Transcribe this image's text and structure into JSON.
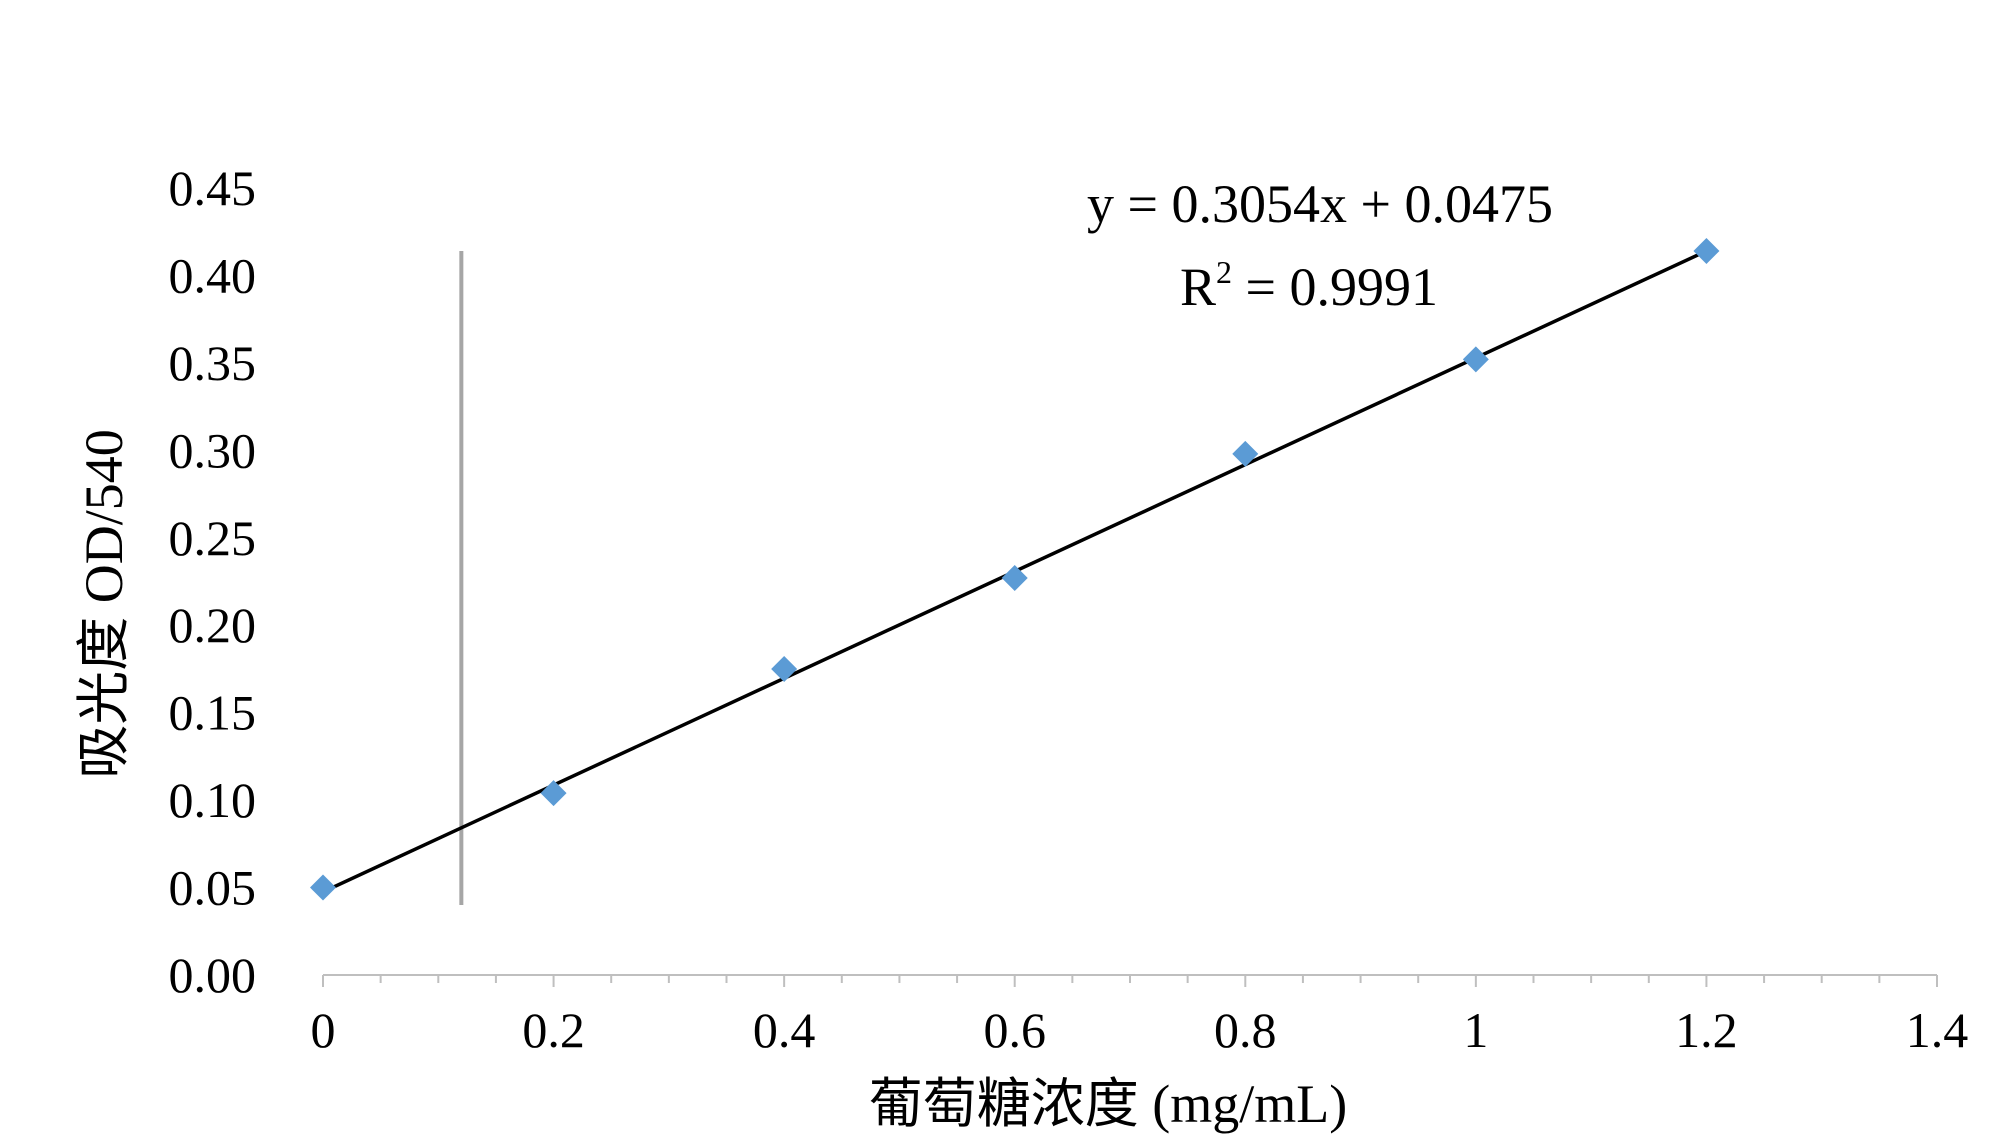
{
  "chart_data": {
    "type": "scatter",
    "xlabel": "葡萄糖浓度 (mg/mL)",
    "ylabel": "吸光度 OD/540",
    "xlim": [
      0,
      1.4
    ],
    "ylim": [
      0,
      0.45
    ],
    "x_ticks": [
      "0",
      "0.2",
      "0.4",
      "0.6",
      "0.8",
      "1",
      "1.2",
      "1.4"
    ],
    "y_ticks": [
      "0.00",
      "0.05",
      "0.10",
      "0.15",
      "0.20",
      "0.25",
      "0.30",
      "0.35",
      "0.40",
      "0.45"
    ],
    "grid": false,
    "series": [
      {
        "x": [
          0,
          0.2,
          0.4,
          0.6,
          0.8,
          1.0,
          1.2
        ],
        "y": [
          0.05,
          0.104,
          0.175,
          0.227,
          0.298,
          0.352,
          0.414
        ],
        "marker": "diamond",
        "color": "#5b9bd5"
      }
    ],
    "trendline": {
      "type": "linear",
      "slope": 0.3054,
      "intercept": 0.0475,
      "color": "#000000"
    },
    "annotations": {
      "equation": "y = 0.3054x + 0.0475",
      "r_squared_prefix": "R",
      "r_squared_sup": "2",
      "r_squared_value": " = 0.9991"
    },
    "vertical_reference_line": {
      "x": 0.12,
      "color": "#a6a6a6"
    }
  }
}
